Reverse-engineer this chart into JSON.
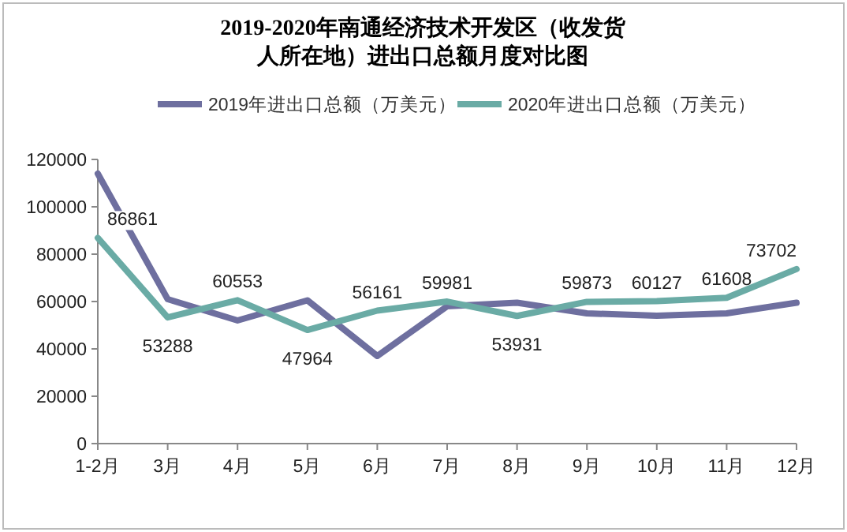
{
  "chart_data": {
    "type": "line",
    "title": "2019-2020年南通经济技术开发区（收发货人所在地）进出口总额月度对比图",
    "categories": [
      "1-2月",
      "3月",
      "4月",
      "5月",
      "6月",
      "7月",
      "8月",
      "9月",
      "10月",
      "11月",
      "12月"
    ],
    "series": [
      {
        "name": "2019年进出口总额（万美元）",
        "color": "#6e6f9f",
        "values": [
          114000,
          61000,
          52000,
          60500,
          37000,
          58000,
          59500,
          55000,
          54000,
          55000,
          59500
        ]
      },
      {
        "name": "2020年进出口总额（万美元）",
        "color": "#6aaba5",
        "values": [
          86861,
          53288,
          60553,
          47964,
          56161,
          59981,
          53931,
          59873,
          60127,
          61608,
          73702
        ],
        "value_labels": [
          "86861",
          "53288",
          "60553",
          "47964",
          "56161",
          "59981",
          "53931",
          "59873",
          "60127",
          "61608",
          "73702"
        ]
      }
    ],
    "ylim": [
      0,
      120000
    ],
    "yticks": [
      0,
      20000,
      40000,
      60000,
      80000,
      100000,
      120000
    ],
    "grid": false,
    "legend": "top",
    "marker": "none",
    "line_style": "solid"
  }
}
